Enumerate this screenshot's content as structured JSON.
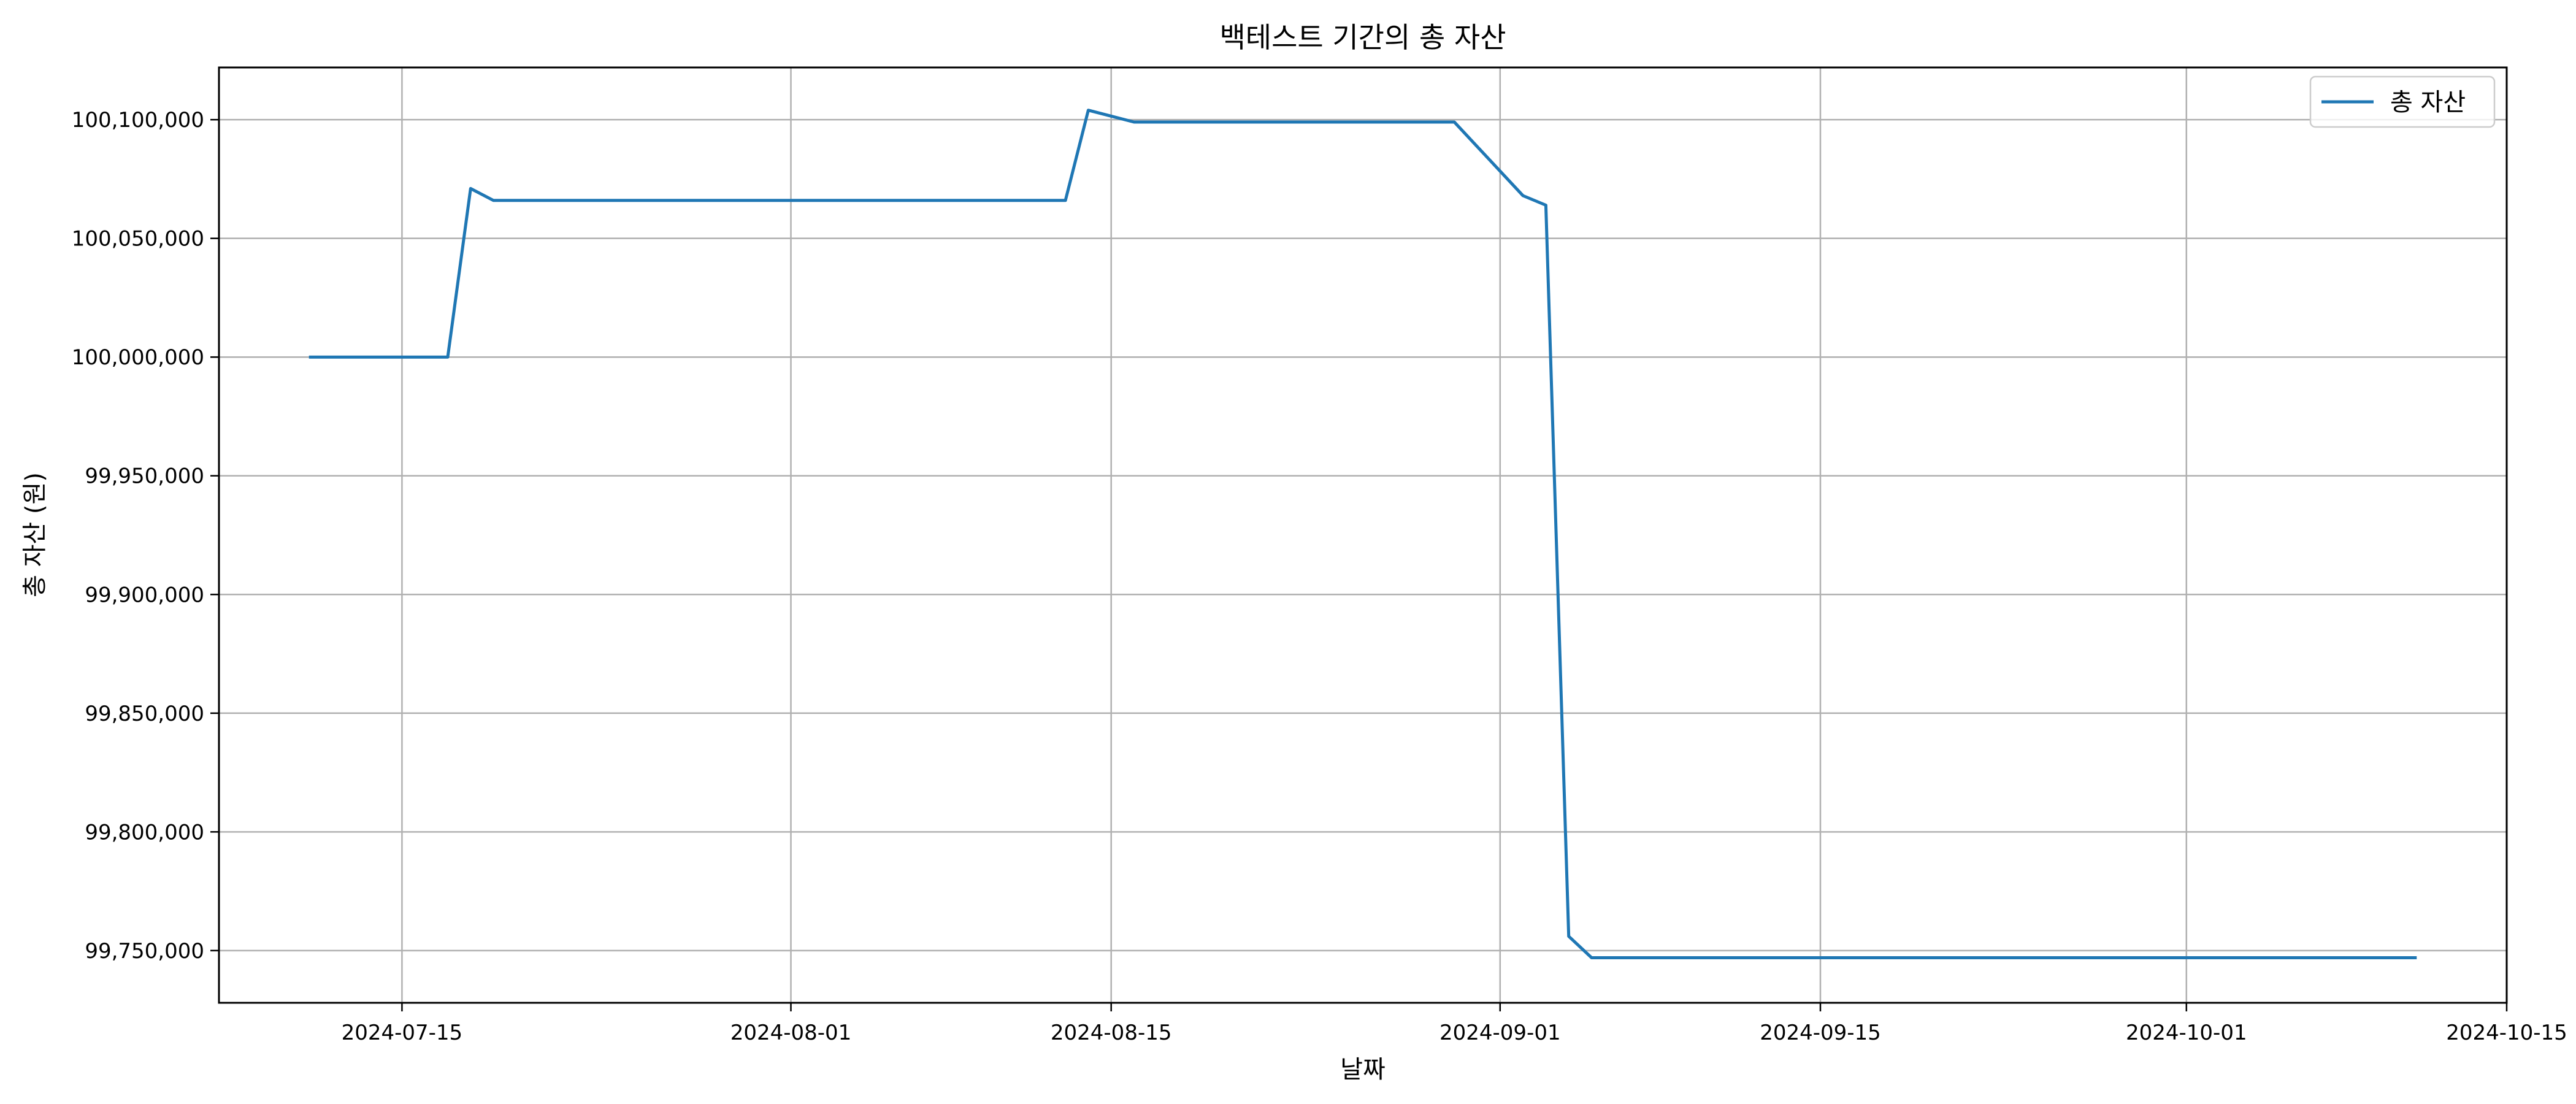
{
  "chart_data": {
    "type": "line",
    "title": "백테스트 기간의 총 자산",
    "xlabel": "날짜",
    "ylabel": "총 자산 (원)",
    "grid": true,
    "legend": "top-right",
    "xlim": [
      "2024-07-07",
      "2024-10-15"
    ],
    "ylim": [
      99728000,
      100122000
    ],
    "x_ticks": [
      "2024-07-15",
      "2024-08-01",
      "2024-08-15",
      "2024-09-01",
      "2024-09-15",
      "2024-10-01",
      "2024-10-15"
    ],
    "y_ticks": [
      99750000,
      99800000,
      99850000,
      99900000,
      99950000,
      100000000,
      100050000,
      100100000
    ],
    "y_tick_labels": [
      "99,750,000",
      "99,800,000",
      "99,850,000",
      "99,900,000",
      "99,950,000",
      "100,000,000",
      "100,050,000",
      "100,100,000"
    ],
    "series": [
      {
        "name": "총 자산",
        "color": "#1f77b4",
        "points": [
          {
            "x": "2024-07-11",
            "y": 100000000
          },
          {
            "x": "2024-07-17",
            "y": 100000000
          },
          {
            "x": "2024-07-18",
            "y": 100071000
          },
          {
            "x": "2024-07-19",
            "y": 100066000
          },
          {
            "x": "2024-08-13",
            "y": 100066000
          },
          {
            "x": "2024-08-14",
            "y": 100104000
          },
          {
            "x": "2024-08-16",
            "y": 100099000
          },
          {
            "x": "2024-08-30",
            "y": 100099000
          },
          {
            "x": "2024-09-02",
            "y": 100068000
          },
          {
            "x": "2024-09-03",
            "y": 100064000
          },
          {
            "x": "2024-09-04",
            "y": 99756000
          },
          {
            "x": "2024-09-05",
            "y": 99747000
          },
          {
            "x": "2024-10-11",
            "y": 99747000
          }
        ]
      }
    ]
  }
}
